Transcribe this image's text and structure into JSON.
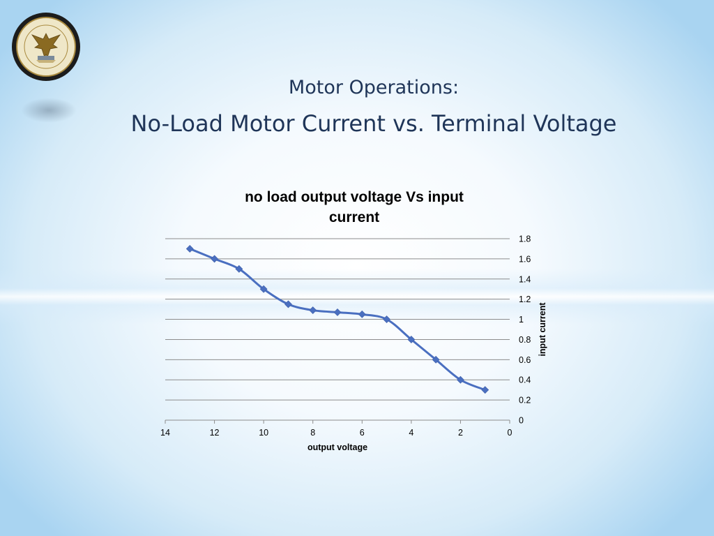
{
  "slide": {
    "title_line1": "Motor Operations:",
    "title_line2": "No-Load Motor Current vs. Terminal Voltage"
  },
  "logo": {
    "icon": "university-seal-icon"
  },
  "chart_data": {
    "type": "line",
    "title_line1": "no load output voltage Vs input",
    "title_line2": "current",
    "xlabel": "output voltage",
    "ylabel": "input current",
    "xlim": [
      14,
      0
    ],
    "ylim": [
      0,
      1.8
    ],
    "x_reversed": true,
    "y_axis_side": "right",
    "grid": "horizontal",
    "legend": "none",
    "marker": "diamond",
    "line_color": "#4a6fc0",
    "x_ticks": [
      "14",
      "12",
      "10",
      "8",
      "6",
      "4",
      "2",
      "0"
    ],
    "y_ticks": [
      "0",
      "0.2",
      "0.4",
      "0.6",
      "0.8",
      "1",
      "1.2",
      "1.4",
      "1.6",
      "1.8"
    ],
    "series": [
      {
        "x": [
          13,
          12,
          11,
          10,
          9,
          8,
          7,
          6,
          5,
          4,
          3,
          2,
          1
        ],
        "y": [
          1.7,
          1.6,
          1.5,
          1.3,
          1.15,
          1.09,
          1.07,
          1.05,
          1.0,
          0.8,
          0.6,
          0.4,
          0.3
        ]
      }
    ]
  }
}
